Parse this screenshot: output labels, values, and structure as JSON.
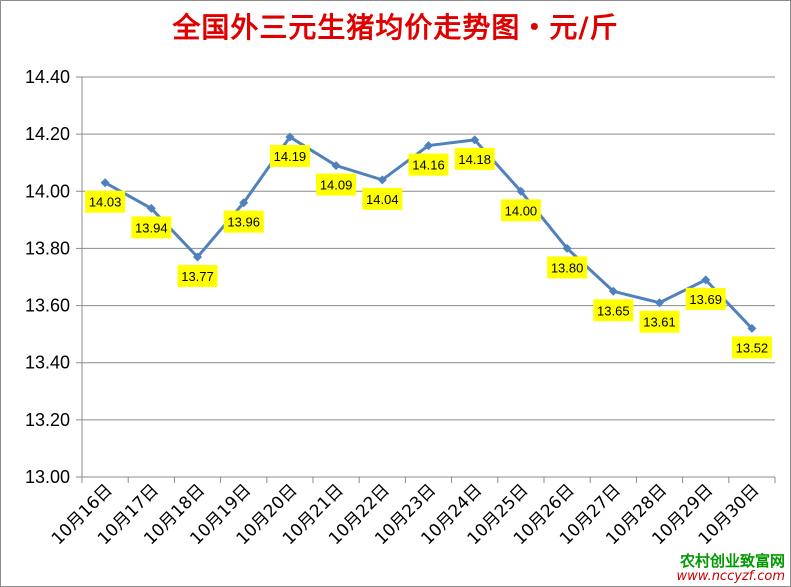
{
  "chart_data": {
    "type": "line",
    "title": "全国外三元生猪均价走势图・元/斤",
    "xlabel": "",
    "ylabel": "",
    "categories": [
      "10月16日",
      "10月17日",
      "10月18日",
      "10月19日",
      "10月20日",
      "10月21日",
      "10月22日",
      "10月23日",
      "10月24日",
      "10月25日",
      "10月26日",
      "10月27日",
      "10月28日",
      "10月29日",
      "10月30日"
    ],
    "series": [
      {
        "values": [
          14.03,
          13.94,
          13.77,
          13.96,
          14.19,
          14.09,
          14.04,
          14.16,
          14.18,
          14.0,
          13.8,
          13.65,
          13.61,
          13.69,
          13.52
        ]
      }
    ],
    "ylim": [
      13.0,
      14.4
    ],
    "yticks": [
      "13.00",
      "13.20",
      "13.40",
      "13.60",
      "13.80",
      "14.00",
      "14.20",
      "14.40"
    ],
    "grid": true,
    "data_labels": true,
    "colors": {
      "line": "#4f81bd",
      "label_bg": "#ffff00",
      "title": "#e00000",
      "grid": "#8c8c8c"
    }
  },
  "watermark": {
    "text": "农村创业致富网",
    "url": "www.nccyzf.com"
  }
}
